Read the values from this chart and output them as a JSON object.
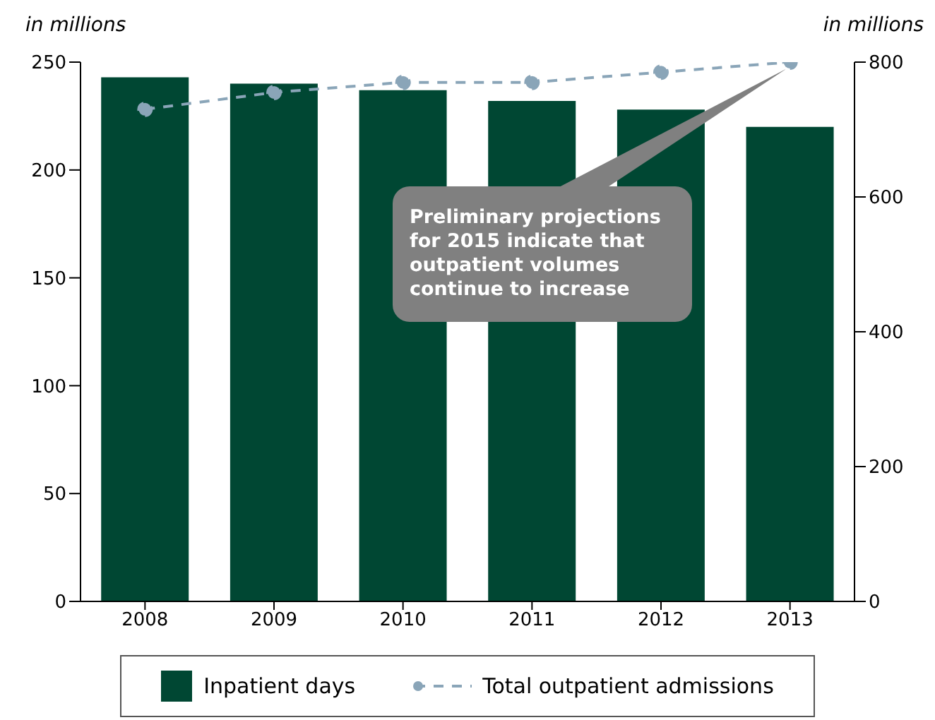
{
  "chart_data": {
    "type": "bar",
    "ylabel": "in millions",
    "y2label": "in millions",
    "categories": [
      "2008",
      "2009",
      "2010",
      "2011",
      "2012",
      "2013"
    ],
    "series": [
      {
        "name": "Inpatient days",
        "color": "#004733",
        "values": [
          243,
          240,
          237,
          232,
          228,
          220
        ]
      },
      {
        "name": "Total outpatient admissions",
        "type": "line",
        "axis": "y2",
        "color": "#8aa5b8",
        "line_style": "dashed",
        "marker": "circle",
        "values": [
          730,
          755,
          770,
          770,
          785,
          800
        ]
      }
    ],
    "ylim": [
      0,
      250
    ],
    "yticks": [
      0,
      50,
      100,
      150,
      200,
      250
    ],
    "y2lim": [
      0,
      800
    ],
    "y2ticks": [
      0,
      200,
      400,
      600,
      800
    ],
    "grid": false,
    "legend": "bottom",
    "annotations": [
      "Preliminary projections for 2015 indicate that outpatient volumes continue to increase"
    ]
  }
}
